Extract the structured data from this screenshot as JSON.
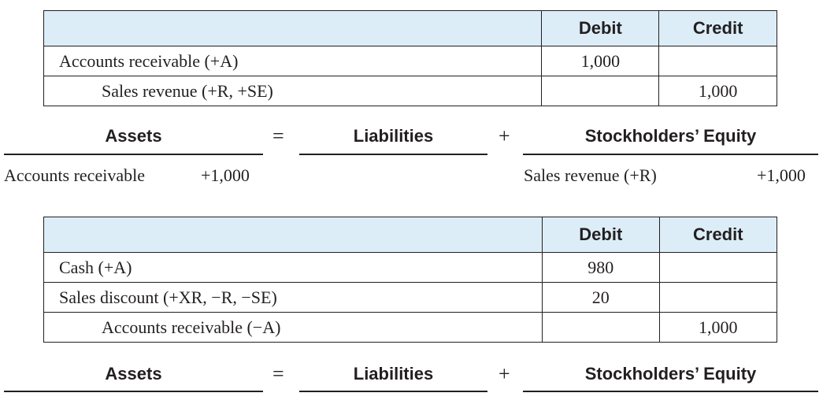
{
  "entry1": {
    "header": {
      "debit": "Debit",
      "credit": "Credit"
    },
    "rows": [
      {
        "account": "Accounts receivable (+A)",
        "debit": "1,000",
        "credit": ""
      },
      {
        "account": "Sales revenue (+R, +SE)",
        "debit": "",
        "credit": "1,000"
      }
    ]
  },
  "equation1": {
    "assets": "Assets",
    "equals": "=",
    "liabilities": "Liabilities",
    "plus": "+",
    "equity": "Stockholders’ Equity",
    "asset_line": {
      "label": "Accounts receivable",
      "value": "+1,000"
    },
    "equity_line": {
      "label": "Sales revenue (+R)",
      "value": "+1,000"
    }
  },
  "entry2": {
    "header": {
      "debit": "Debit",
      "credit": "Credit"
    },
    "rows": [
      {
        "account": "Cash (+A)",
        "debit": "980",
        "credit": ""
      },
      {
        "account": "Sales discount (+XR, −R, −SE)",
        "debit": "20",
        "credit": ""
      },
      {
        "account": "Accounts receivable (−A)",
        "debit": "",
        "credit": "1,000"
      }
    ]
  },
  "equation2": {
    "assets": "Assets",
    "equals": "=",
    "liabilities": "Liabilities",
    "plus": "+",
    "equity": "Stockholders’ Equity"
  }
}
